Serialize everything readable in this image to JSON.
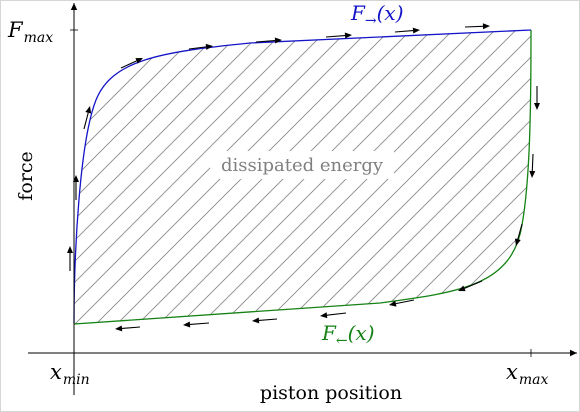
{
  "labels": {
    "f_max": "F",
    "f_max_sub": "max",
    "x_min": "x",
    "x_min_sub": "min",
    "x_max": "x",
    "x_max_sub": "max",
    "y_axis": "force",
    "x_axis": "piston position",
    "area": "dissipated energy",
    "forward_curve": "F",
    "forward_arrow": "→",
    "forward_arg": "(x)",
    "backward_curve": "F",
    "backward_arrow": "←",
    "backward_arg": "(x)"
  },
  "colors": {
    "forward": "#1414c8",
    "backward": "#148214",
    "hatch": "#8a8a8a",
    "area_label": "#808080",
    "axis": "#000000"
  }
}
